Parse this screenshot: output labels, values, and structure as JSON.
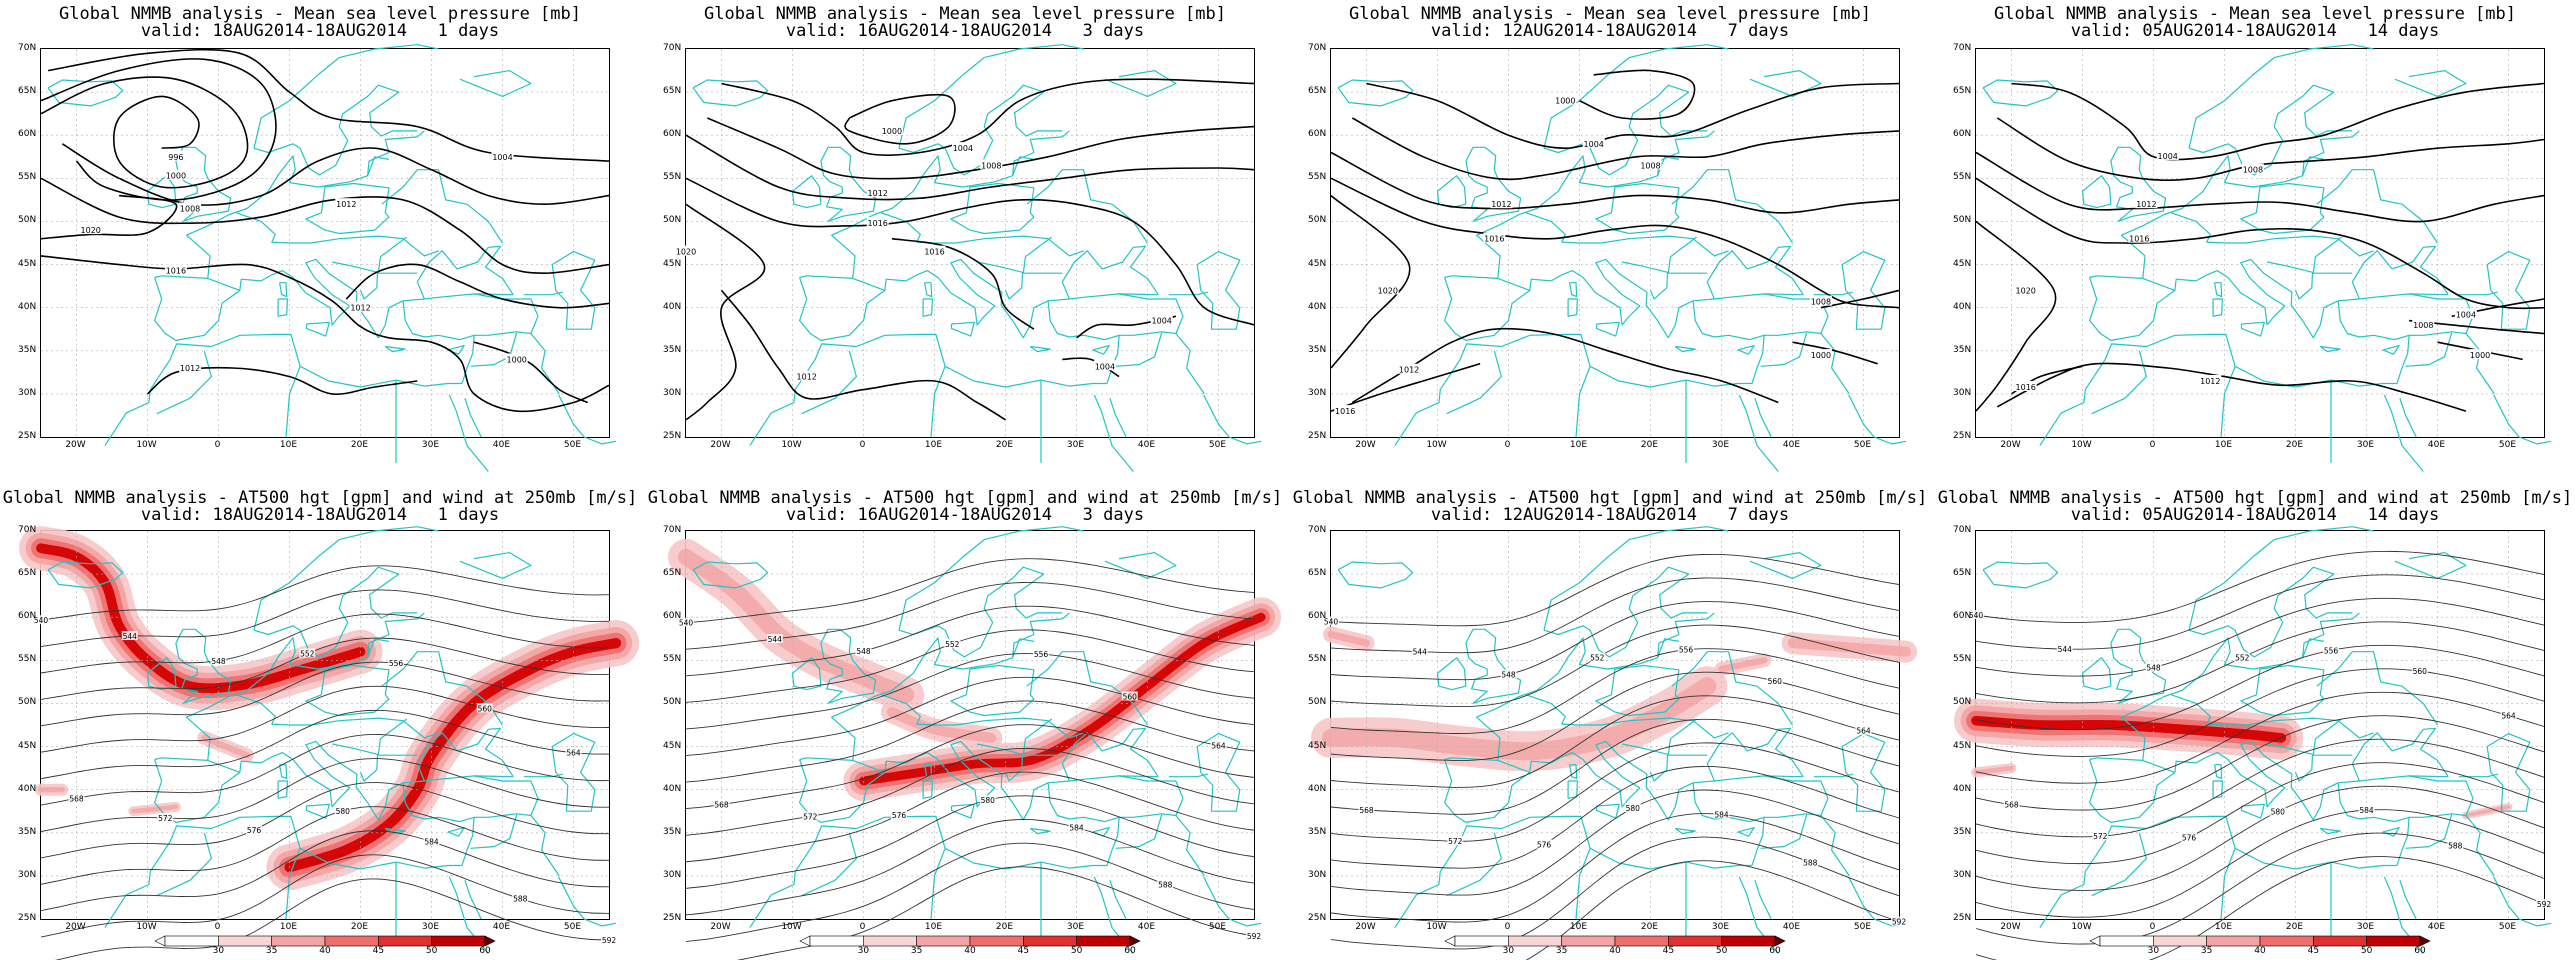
{
  "top_row": [
    {
      "line1": "Global NMMB analysis - Mean sea level pressure [mb]",
      "line2": "valid: 18AUG2014-18AUG2014   1 days"
    },
    {
      "line1": "Global NMMB analysis - Mean sea level pressure [mb]",
      "line2": "valid: 16AUG2014-18AUG2014   3 days"
    },
    {
      "line1": "Global NMMB analysis - Mean sea level pressure [mb]",
      "line2": "valid: 12AUG2014-18AUG2014   7 days"
    },
    {
      "line1": "Global NMMB analysis - Mean sea level pressure [mb]",
      "line2": "valid: 05AUG2014-18AUG2014   14 days"
    }
  ],
  "bottom_row": [
    {
      "line1": "Global NMMB analysis - AT500 hgt [gpm] and wind at 250mb [m/s]",
      "line2": "valid: 18AUG2014-18AUG2014   1 days"
    },
    {
      "line1": "Global NMMB analysis - AT500 hgt [gpm] and wind at 250mb [m/s]",
      "line2": "valid: 16AUG2014-18AUG2014   3 days"
    },
    {
      "line1": "Global NMMB analysis - AT500 hgt [gpm] and wind at 250mb [m/s]",
      "line2": "valid: 12AUG2014-18AUG2014   7 days"
    },
    {
      "line1": "Global NMMB analysis - AT500 hgt [gpm] and wind at 250mb [m/s]",
      "line2": "valid: 05AUG2014-18AUG2014   14 days"
    }
  ],
  "lat_labels": [
    "70N",
    "65N",
    "60N",
    "55N",
    "50N",
    "45N",
    "40N",
    "35N",
    "30N",
    "25N"
  ],
  "lon_labels": [
    "20W",
    "10W",
    "0",
    "10E",
    "20E",
    "30E",
    "40E",
    "50E"
  ],
  "colorbar_labels": [
    "30",
    "35",
    "40",
    "45",
    "50",
    "60"
  ],
  "pressure_contour_labels": [
    "996",
    "1000",
    "1004",
    "1008",
    "1012",
    "1016",
    "1020"
  ],
  "height_contour_labels": [
    "540",
    "544",
    "548",
    "552",
    "556",
    "560",
    "564",
    "568",
    "572",
    "576",
    "580",
    "584",
    "588",
    "592"
  ],
  "colors": {
    "coastline": "#22c4c4",
    "contour": "#000000",
    "wind_light": "#f7c6c6",
    "wind_mid": "#ee6e6e",
    "wind_strong": "#d40000",
    "grid": "#b0b0b0"
  }
}
